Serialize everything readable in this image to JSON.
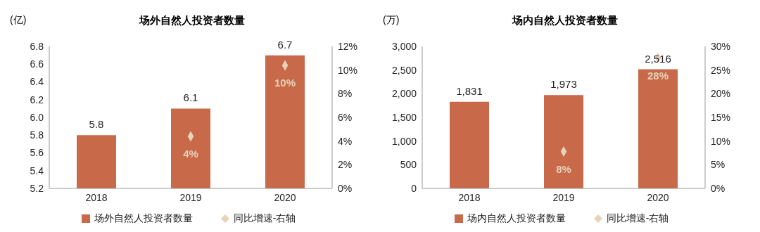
{
  "chart_data": [
    {
      "type": "bar",
      "title": "场外自然人投资者数量",
      "ylabel": "(亿)",
      "categories": [
        "2018",
        "2019",
        "2020"
      ],
      "series": [
        {
          "name": "场外自然人投资者数量",
          "color": "#c8694a",
          "values": [
            5.8,
            6.1,
            6.7
          ],
          "value_labels": [
            "5.8",
            "6.1",
            "6.7"
          ]
        },
        {
          "type": "scatter",
          "name": "同比增速-右轴",
          "color": "#e6d3b8",
          "axis": "y2",
          "values": [
            null,
            4.4,
            10.4
          ],
          "value_labels": [
            null,
            "4%",
            "10%"
          ]
        }
      ],
      "ylim": [
        5.2,
        6.8
      ],
      "yticks": [
        5.2,
        5.4,
        5.6,
        5.8,
        {
          "value": 6,
          "label": "6.0"
        },
        6.2,
        6.4,
        6.6,
        6.8
      ],
      "y2lim": [
        0,
        12
      ],
      "y2ticks": [
        {
          "value": 0,
          "label": "0%"
        },
        {
          "value": 2,
          "label": "2%"
        },
        {
          "value": 4,
          "label": "4%"
        },
        {
          "value": 6,
          "label": "6%"
        },
        {
          "value": 8,
          "label": "8%"
        },
        {
          "value": 10,
          "label": "10%"
        },
        {
          "value": 12,
          "label": "12%"
        }
      ],
      "marker": "diamond",
      "legend": "bottom",
      "grid": false
    },
    {
      "type": "bar",
      "title": "场内自然人投资者数量",
      "ylabel": "(万)",
      "categories": [
        "2018",
        "2019",
        "2020"
      ],
      "series": [
        {
          "name": "场内自然人投资者数量",
          "color": "#c8694a",
          "values": [
            1831,
            1973,
            2516
          ],
          "value_labels": [
            "1,831",
            "1,973",
            "2,516"
          ]
        },
        {
          "type": "scatter",
          "name": "同比增速-右轴",
          "color": "#e6d3b8",
          "axis": "y2",
          "values": [
            null,
            7.8,
            27.6
          ],
          "value_labels": [
            null,
            "8%",
            "28%"
          ]
        }
      ],
      "ylim": [
        0,
        3000
      ],
      "yticks": [
        0,
        {
          "value": 500,
          "label": "500"
        },
        {
          "value": 1000,
          "label": "1,000"
        },
        {
          "value": 1500,
          "label": "1,500"
        },
        {
          "value": 2000,
          "label": "2,000"
        },
        {
          "value": 2500,
          "label": "2,500"
        },
        {
          "value": 3000,
          "label": "3,000"
        }
      ],
      "y2lim": [
        0,
        30
      ],
      "y2ticks": [
        {
          "value": 0,
          "label": "0%"
        },
        {
          "value": 5,
          "label": "5%"
        },
        {
          "value": 10,
          "label": "10%"
        },
        {
          "value": 15,
          "label": "15%"
        },
        {
          "value": 20,
          "label": "20%"
        },
        {
          "value": 25,
          "label": "25%"
        },
        {
          "value": 30,
          "label": "30%"
        }
      ],
      "marker": "diamond",
      "legend": "bottom",
      "grid": false
    }
  ]
}
